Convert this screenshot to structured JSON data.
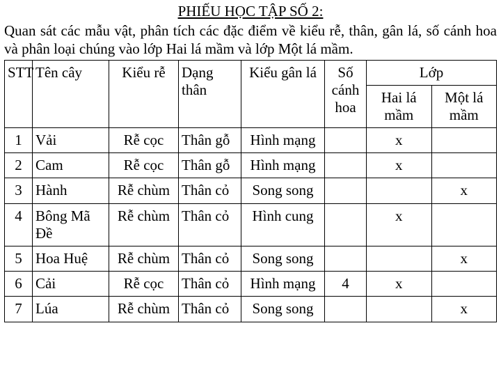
{
  "header": {
    "title": "PHIẾU HỌC TẬP SỐ 2:",
    "description": "Quan sát các mẫu vật, phân tích các đặc điểm về kiểu rễ, thân, gân lá, số cánh hoa và phân loại chúng vào lớp Hai lá mầm và lớp Một lá mầm."
  },
  "table": {
    "columns": {
      "stt": "STT",
      "ten": "Tên cây",
      "re": "Kiểu rễ",
      "than": "Dạng thân",
      "gan": "Kiểu gân lá",
      "so": "Số cánh hoa",
      "lop": "Lớp",
      "lop1": "Hai lá mầm",
      "lop2": "Một lá mầm"
    },
    "rows": [
      {
        "stt": "1",
        "ten": "Vải",
        "re": "Rễ cọc",
        "than": "Thân gỗ",
        "gan": "Hình mạng",
        "so": "",
        "lop1": "x",
        "lop2": ""
      },
      {
        "stt": "2",
        "ten": "Cam",
        "re": "Rễ cọc",
        "than": "Thân gỗ",
        "gan": "Hình mạng",
        "so": "",
        "lop1": "x",
        "lop2": ""
      },
      {
        "stt": "3",
        "ten": "Hành",
        "re": "Rễ chùm",
        "than": "Thân cỏ",
        "gan": "Song song",
        "so": "",
        "lop1": "",
        "lop2": "x"
      },
      {
        "stt": "4",
        "ten": "Bông Mã Đề",
        "re": "Rễ chùm",
        "than": "Thân cỏ",
        "gan": "Hình cung",
        "so": "",
        "lop1": "x",
        "lop2": ""
      },
      {
        "stt": "5",
        "ten": "Hoa Huệ",
        "re": "Rễ chùm",
        "than": "Thân cỏ",
        "gan": "Song song",
        "so": "",
        "lop1": "",
        "lop2": "x"
      },
      {
        "stt": "6",
        "ten": "Cải",
        "re": "Rễ cọc",
        "than": "Thân cỏ",
        "gan": "Hình mạng",
        "so": "4",
        "lop1": "x",
        "lop2": ""
      },
      {
        "stt": "7",
        "ten": "Lúa",
        "re": "Rễ chùm",
        "than": "Thân cỏ",
        "gan": "Song song",
        "so": "",
        "lop1": "",
        "lop2": "x"
      }
    ]
  },
  "style": {
    "font_family": "Times New Roman",
    "title_fontsize": 21,
    "body_fontsize": 21,
    "border_color": "#000000",
    "background_color": "#ffffff",
    "text_color": "#000000"
  }
}
